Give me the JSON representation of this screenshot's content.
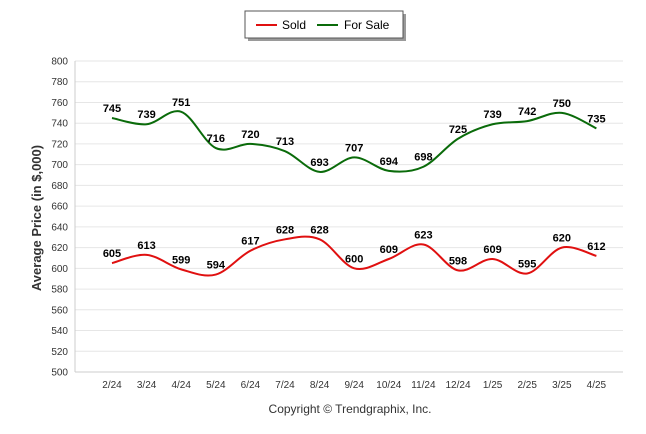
{
  "chart_data": {
    "type": "line",
    "ylabel": "Average Price (in $,000)",
    "ylim": [
      500,
      800
    ],
    "ytick_step": 20,
    "grid": true,
    "legend_position": "top-center",
    "categories": [
      "2/24",
      "3/24",
      "4/24",
      "5/24",
      "6/24",
      "7/24",
      "8/24",
      "9/24",
      "10/24",
      "11/24",
      "12/24",
      "1/25",
      "2/25",
      "3/25",
      "4/25"
    ],
    "series": [
      {
        "name": "Sold",
        "color": "#e01010",
        "values": [
          605,
          613,
          599,
          594,
          617,
          628,
          628,
          600,
          609,
          623,
          598,
          609,
          595,
          620,
          612
        ]
      },
      {
        "name": "For Sale",
        "color": "#0a6b0a",
        "values": [
          745,
          739,
          751,
          716,
          720,
          713,
          693,
          707,
          694,
          698,
          725,
          739,
          742,
          750,
          735
        ]
      }
    ]
  },
  "footer": {
    "copyright": "Copyright © Trendgraphix, Inc."
  }
}
